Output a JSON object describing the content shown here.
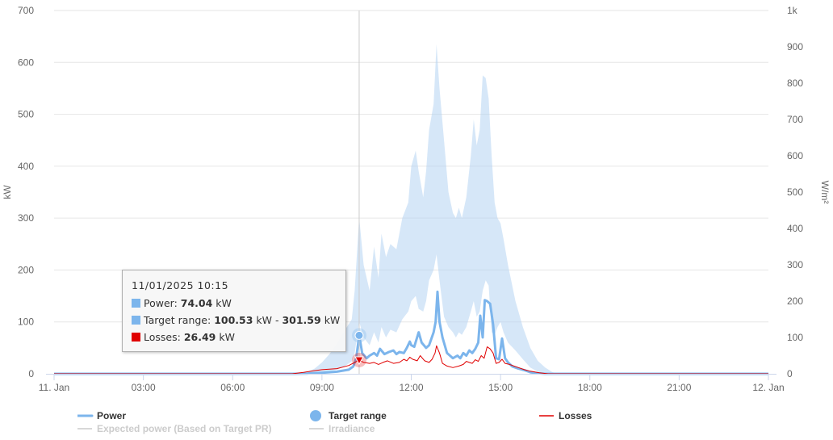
{
  "chart_data": {
    "type": "area",
    "x_axis": {
      "start_label": "11. Jan",
      "end_label": "12. Jan",
      "tick_labels": [
        "11. Jan",
        "03:00",
        "06:00",
        "09:00",
        "12:00",
        "15:00",
        "18:00",
        "21:00",
        "12. Jan"
      ],
      "tick_hours": [
        0,
        3,
        6,
        9,
        12,
        15,
        18,
        21,
        24
      ],
      "range_hours": [
        0,
        24
      ]
    },
    "y_axis_left": {
      "label": "kW",
      "ylim": [
        0,
        700
      ],
      "ticks": [
        0,
        100,
        200,
        300,
        400,
        500,
        600,
        700
      ],
      "tick_labels": [
        "0",
        "100",
        "200",
        "300",
        "400",
        "500",
        "600",
        "700"
      ]
    },
    "y_axis_right": {
      "label": "W/m²",
      "ylim": [
        0,
        1000
      ],
      "ticks": [
        0,
        100,
        200,
        300,
        400,
        500,
        600,
        700,
        800,
        900,
        1000
      ],
      "tick_labels": [
        "0",
        "100",
        "200",
        "300",
        "400",
        "500",
        "600",
        "700",
        "800",
        "900",
        "1k"
      ]
    },
    "grid": true,
    "crosshair_hour": 10.25,
    "series": [
      {
        "name": "Target range",
        "kind": "arearange",
        "color": "#b5d3f3",
        "points": [
          [
            8.0,
            0,
            0
          ],
          [
            8.5,
            0,
            4
          ],
          [
            8.75,
            1,
            10
          ],
          [
            9.0,
            2,
            22
          ],
          [
            9.25,
            4,
            38
          ],
          [
            9.5,
            8,
            58
          ],
          [
            9.75,
            14,
            82
          ],
          [
            10.0,
            24,
            105
          ],
          [
            10.1,
            40,
            160
          ],
          [
            10.25,
            100.53,
            301.59
          ],
          [
            10.4,
            70,
            210
          ],
          [
            10.6,
            55,
            160
          ],
          [
            10.75,
            80,
            245
          ],
          [
            10.9,
            60,
            185
          ],
          [
            11.0,
            90,
            270
          ],
          [
            11.15,
            70,
            225
          ],
          [
            11.3,
            85,
            250
          ],
          [
            11.5,
            80,
            240
          ],
          [
            11.7,
            105,
            300
          ],
          [
            11.9,
            120,
            330
          ],
          [
            12.0,
            140,
            400
          ],
          [
            12.15,
            150,
            430
          ],
          [
            12.25,
            125,
            390
          ],
          [
            12.4,
            120,
            340
          ],
          [
            12.5,
            140,
            390
          ],
          [
            12.6,
            180,
            470
          ],
          [
            12.75,
            200,
            520
          ],
          [
            12.85,
            230,
            635
          ],
          [
            12.95,
            180,
            550
          ],
          [
            13.1,
            110,
            450
          ],
          [
            13.25,
            90,
            350
          ],
          [
            13.4,
            80,
            310
          ],
          [
            13.5,
            70,
            300
          ],
          [
            13.6,
            80,
            320
          ],
          [
            13.7,
            75,
            300
          ],
          [
            13.85,
            90,
            340
          ],
          [
            14.0,
            120,
            420
          ],
          [
            14.1,
            140,
            490
          ],
          [
            14.2,
            110,
            440
          ],
          [
            14.3,
            120,
            470
          ],
          [
            14.4,
            160,
            575
          ],
          [
            14.5,
            180,
            570
          ],
          [
            14.6,
            170,
            530
          ],
          [
            14.7,
            80,
            420
          ],
          [
            14.8,
            75,
            330
          ],
          [
            14.9,
            90,
            300
          ],
          [
            15.0,
            100,
            290
          ],
          [
            15.1,
            80,
            260
          ],
          [
            15.25,
            60,
            210
          ],
          [
            15.5,
            45,
            140
          ],
          [
            15.75,
            28,
            90
          ],
          [
            16.0,
            12,
            50
          ],
          [
            16.25,
            4,
            25
          ],
          [
            16.5,
            1,
            12
          ],
          [
            16.75,
            0,
            3
          ],
          [
            17.0,
            0,
            0
          ]
        ]
      },
      {
        "name": "Power",
        "kind": "line",
        "color": "#7cb5ec",
        "points": [
          [
            0,
            0
          ],
          [
            8.0,
            0
          ],
          [
            8.5,
            0.5
          ],
          [
            9.0,
            2
          ],
          [
            9.5,
            4
          ],
          [
            9.9,
            8
          ],
          [
            10.05,
            14
          ],
          [
            10.15,
            30
          ],
          [
            10.25,
            74.04
          ],
          [
            10.35,
            40
          ],
          [
            10.5,
            30
          ],
          [
            10.6,
            35
          ],
          [
            10.75,
            40
          ],
          [
            10.85,
            35
          ],
          [
            10.95,
            48
          ],
          [
            11.1,
            38
          ],
          [
            11.25,
            42
          ],
          [
            11.4,
            45
          ],
          [
            11.5,
            38
          ],
          [
            11.6,
            42
          ],
          [
            11.75,
            40
          ],
          [
            11.85,
            50
          ],
          [
            11.95,
            62
          ],
          [
            12.0,
            55
          ],
          [
            12.1,
            52
          ],
          [
            12.25,
            80
          ],
          [
            12.35,
            60
          ],
          [
            12.5,
            50
          ],
          [
            12.6,
            55
          ],
          [
            12.75,
            80
          ],
          [
            12.82,
            100
          ],
          [
            12.88,
            158
          ],
          [
            12.95,
            100
          ],
          [
            13.05,
            70
          ],
          [
            13.2,
            40
          ],
          [
            13.4,
            30
          ],
          [
            13.55,
            35
          ],
          [
            13.65,
            30
          ],
          [
            13.75,
            40
          ],
          [
            13.85,
            35
          ],
          [
            13.95,
            45
          ],
          [
            14.05,
            40
          ],
          [
            14.15,
            48
          ],
          [
            14.25,
            60
          ],
          [
            14.32,
            112
          ],
          [
            14.4,
            70
          ],
          [
            14.47,
            142
          ],
          [
            14.55,
            140
          ],
          [
            14.65,
            135
          ],
          [
            14.75,
            95
          ],
          [
            14.85,
            30
          ],
          [
            14.95,
            28
          ],
          [
            15.05,
            68
          ],
          [
            15.15,
            30
          ],
          [
            15.25,
            22
          ],
          [
            15.4,
            14
          ],
          [
            15.6,
            10
          ],
          [
            15.85,
            6
          ],
          [
            16.0,
            3
          ],
          [
            16.25,
            1
          ],
          [
            16.5,
            0
          ],
          [
            24,
            0
          ]
        ]
      },
      {
        "name": "Losses",
        "kind": "line",
        "color": "#e00000",
        "points": [
          [
            0,
            0
          ],
          [
            8.0,
            0
          ],
          [
            8.4,
            3
          ],
          [
            8.75,
            6
          ],
          [
            9.0,
            8
          ],
          [
            9.5,
            10
          ],
          [
            9.9,
            16
          ],
          [
            10.1,
            22
          ],
          [
            10.25,
            26.49
          ],
          [
            10.4,
            22
          ],
          [
            10.6,
            20
          ],
          [
            10.75,
            22
          ],
          [
            10.9,
            18
          ],
          [
            11.05,
            22
          ],
          [
            11.2,
            25
          ],
          [
            11.4,
            20
          ],
          [
            11.6,
            22
          ],
          [
            11.75,
            28
          ],
          [
            11.85,
            25
          ],
          [
            11.95,
            32
          ],
          [
            12.05,
            28
          ],
          [
            12.2,
            25
          ],
          [
            12.3,
            35
          ],
          [
            12.45,
            25
          ],
          [
            12.6,
            22
          ],
          [
            12.7,
            28
          ],
          [
            12.8,
            40
          ],
          [
            12.85,
            54
          ],
          [
            12.95,
            40
          ],
          [
            13.05,
            20
          ],
          [
            13.2,
            15
          ],
          [
            13.4,
            12
          ],
          [
            13.6,
            15
          ],
          [
            13.75,
            18
          ],
          [
            13.85,
            24
          ],
          [
            13.95,
            22
          ],
          [
            14.05,
            20
          ],
          [
            14.15,
            27
          ],
          [
            14.25,
            24
          ],
          [
            14.35,
            35
          ],
          [
            14.45,
            30
          ],
          [
            14.55,
            52
          ],
          [
            14.65,
            48
          ],
          [
            14.75,
            40
          ],
          [
            14.85,
            20
          ],
          [
            14.95,
            22
          ],
          [
            15.05,
            28
          ],
          [
            15.15,
            20
          ],
          [
            15.3,
            18
          ],
          [
            15.45,
            15
          ],
          [
            15.6,
            12
          ],
          [
            15.8,
            8
          ],
          [
            16.0,
            5
          ],
          [
            16.3,
            2
          ],
          [
            16.6,
            0
          ],
          [
            24,
            0
          ]
        ]
      }
    ]
  },
  "tooltip": {
    "title": "11/01/2025 10:15",
    "rows": [
      {
        "label": "Power: ",
        "value": "74.04",
        "unit": " kW",
        "color": "#7cb5ec"
      },
      {
        "label": "Target range: ",
        "value": "100.53",
        "unit": " kW - ",
        "value2": "301.59",
        "unit2": " kW",
        "color": "#7cb5ec"
      },
      {
        "label": "Losses: ",
        "value": "26.49",
        "unit": " kW",
        "color": "#e00000"
      }
    ]
  },
  "legend": [
    {
      "name": "Power",
      "color": "#7cb5ec",
      "text_color": "#333333",
      "symbol": "line",
      "active": true
    },
    {
      "name": "Target range",
      "color": "#7cb5ec",
      "text_color": "#333333",
      "symbol": "circle",
      "active": true
    },
    {
      "name": "Losses",
      "color": "#e00000",
      "text_color": "#333333",
      "symbol": "thin-line",
      "active": true
    },
    {
      "name": "Expected power (Based on Target PR)",
      "color": "#cccccc",
      "text_color": "#cccccc",
      "symbol": "thin-line",
      "active": false
    },
    {
      "name": "Irradiance",
      "color": "#cccccc",
      "text_color": "#cccccc",
      "symbol": "thin-line",
      "active": false
    }
  ]
}
